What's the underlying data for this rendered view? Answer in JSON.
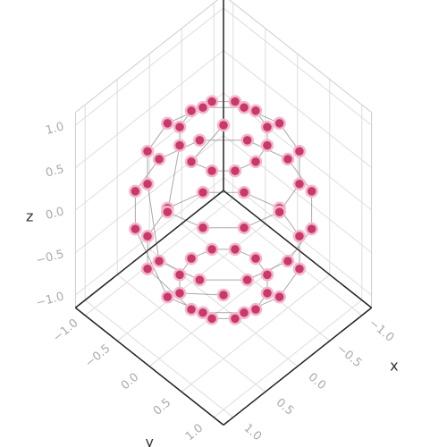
{
  "chart_data": {
    "type": "scatter3d",
    "x": [
      0,
      0.5,
      0.43,
      0.25,
      0,
      -0.25,
      -0.43,
      -0.5,
      -0.43,
      -0.25,
      0,
      0.25,
      0.43,
      0.87,
      0.75,
      0.43,
      0,
      -0.43,
      -0.75,
      -0.87,
      -0.75,
      -0.43,
      0,
      0.43,
      0.75,
      1,
      0.87,
      0.5,
      0,
      -0.5,
      -0.87,
      -1,
      -0.87,
      -0.5,
      0,
      0.5,
      0.87,
      0.87,
      0.75,
      0.43,
      0,
      -0.43,
      -0.75,
      -0.87,
      -0.75,
      -0.43,
      0,
      0.43,
      0.75,
      0.5,
      0.43,
      0.25,
      0,
      -0.25,
      -0.43,
      -0.5,
      -0.43,
      -0.25,
      0,
      0.25,
      0.43,
      0
    ],
    "y": [
      0,
      0,
      0.25,
      0.43,
      0.5,
      0.43,
      0.25,
      0,
      -0.25,
      -0.43,
      -0.5,
      -0.43,
      -0.25,
      0,
      0.43,
      0.75,
      0.87,
      0.75,
      0.43,
      0,
      -0.43,
      -0.75,
      -0.87,
      -0.75,
      -0.43,
      0,
      0.5,
      0.87,
      1,
      0.87,
      0.5,
      0,
      -0.5,
      -0.87,
      -1,
      -0.87,
      -0.5,
      0,
      0.43,
      0.75,
      0.87,
      0.75,
      0.43,
      0,
      -0.43,
      -0.75,
      -0.87,
      -0.75,
      -0.43,
      0,
      0.25,
      0.43,
      0.5,
      0.43,
      0.25,
      0,
      -0.25,
      -0.43,
      -0.5,
      -0.43,
      -0.25,
      0
    ],
    "z": [
      1,
      0.87,
      0.87,
      0.87,
      0.87,
      0.87,
      0.87,
      0.87,
      0.87,
      0.87,
      0.87,
      0.87,
      0.87,
      0.5,
      0.5,
      0.5,
      0.5,
      0.5,
      0.5,
      0.5,
      0.5,
      0.5,
      0.5,
      0.5,
      0.5,
      0,
      0,
      0,
      0,
      0,
      0,
      0,
      0,
      0,
      0,
      0,
      0,
      -0.5,
      -0.5,
      -0.5,
      -0.5,
      -0.5,
      -0.5,
      -0.5,
      -0.5,
      -0.5,
      -0.5,
      -0.5,
      -0.5,
      -0.87,
      -0.87,
      -0.87,
      -0.87,
      -0.87,
      -0.87,
      -0.87,
      -0.87,
      -0.87,
      -0.87,
      -0.87,
      -0.87,
      -1
    ],
    "marker_color": "#c8386b",
    "marker_line_color": "#f4b6cc",
    "line_color": "#555555",
    "xlabel": "x",
    "ylabel": "y",
    "zlabel": "z",
    "xlim": [
      -1.15,
      1.15
    ],
    "ylim": [
      -1.15,
      1.15
    ],
    "zlim": [
      -1.15,
      1.15
    ],
    "xticks": [
      {
        "value": -1,
        "label": "−1.0"
      },
      {
        "value": -0.5,
        "label": "−0.5"
      },
      {
        "value": 0,
        "label": "0.0"
      },
      {
        "value": 0.5,
        "label": "0.5"
      },
      {
        "value": 1,
        "label": "1.0"
      }
    ],
    "yticks": [
      {
        "value": -1,
        "label": "−1.0"
      },
      {
        "value": -0.5,
        "label": "−0.5"
      },
      {
        "value": 0,
        "label": "0.0"
      },
      {
        "value": 0.5,
        "label": "0.5"
      },
      {
        "value": 1,
        "label": "1.0"
      }
    ],
    "zticks": [
      {
        "value": -1,
        "label": "−1.0"
      },
      {
        "value": -0.5,
        "label": "−0.5"
      },
      {
        "value": 0,
        "label": "0.0"
      },
      {
        "value": 0.5,
        "label": "0.5"
      },
      {
        "value": 1,
        "label": "1.0"
      }
    ],
    "grid": true
  }
}
